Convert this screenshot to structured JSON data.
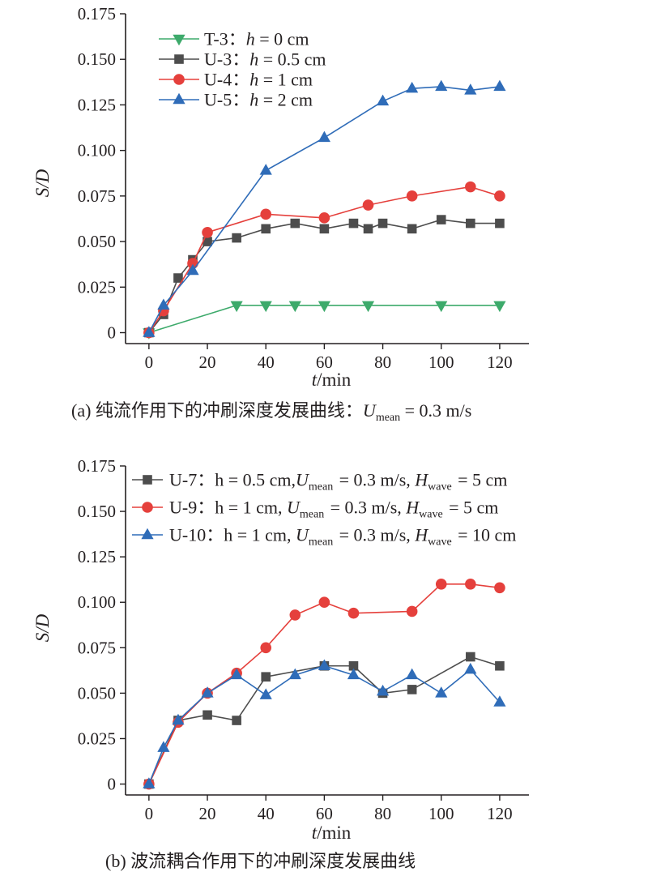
{
  "chart_data": [
    {
      "type": "line",
      "caption": {
        "prefix": "(a) 纯流作用下的冲刷深度发展曲线：",
        "var": "U",
        "sub": "mean",
        "suffix": " = 0.3 m/s"
      },
      "xlabel": {
        "var": "t",
        "unit": "/min"
      },
      "ylabel": "S/D",
      "xlim": [
        -8,
        130
      ],
      "ylim": [
        -0.006,
        0.175
      ],
      "xticks": [
        "0",
        "20",
        "40",
        "60",
        "80",
        "100",
        "120"
      ],
      "yticks": [
        "0",
        "0.025",
        "0.050",
        "0.075",
        "0.100",
        "0.125",
        "0.150",
        "0.175"
      ],
      "legend_position": "top-left",
      "grid": false,
      "series": [
        {
          "name": "T-3：",
          "param": "h = 0 cm",
          "marker": "triangle-down",
          "color": "#3daa6b",
          "x": [
            0,
            30,
            40,
            50,
            60,
            75,
            100,
            120
          ],
          "y": [
            0,
            0.015,
            0.015,
            0.015,
            0.015,
            0.015,
            0.015,
            0.015
          ]
        },
        {
          "name": "U-3：",
          "param": "h = 0.5 cm",
          "marker": "square",
          "color": "#4d4d4d",
          "x": [
            0,
            5,
            10,
            15,
            20,
            30,
            40,
            50,
            60,
            70,
            75,
            80,
            90,
            100,
            110,
            120
          ],
          "y": [
            0,
            0.01,
            0.03,
            0.04,
            0.05,
            0.052,
            0.057,
            0.06,
            0.057,
            0.06,
            0.057,
            0.06,
            0.057,
            0.062,
            0.06,
            0.06
          ]
        },
        {
          "name": "U-4：",
          "param": "h = 1 cm",
          "marker": "circle",
          "color": "#e5403c",
          "x": [
            0,
            5,
            15,
            20,
            40,
            60,
            75,
            90,
            110,
            120
          ],
          "y": [
            0,
            0.012,
            0.038,
            0.055,
            0.065,
            0.063,
            0.07,
            0.075,
            0.08,
            0.075
          ]
        },
        {
          "name": "U-5：",
          "param": "h = 2 cm",
          "marker": "triangle-up",
          "color": "#2f6cb8",
          "x": [
            0,
            5,
            15,
            40,
            60,
            80,
            90,
            100,
            110,
            120
          ],
          "y": [
            0,
            0.015,
            0.034,
            0.089,
            0.107,
            0.127,
            0.134,
            0.135,
            0.133,
            0.135
          ]
        }
      ]
    },
    {
      "type": "line",
      "caption": {
        "prefix": "(b) 波流耦合作用下的冲刷深度发展曲线",
        "var": "",
        "sub": "",
        "suffix": ""
      },
      "xlabel": {
        "var": "t",
        "unit": "/min"
      },
      "ylabel": "S/D",
      "xlim": [
        -8,
        130
      ],
      "ylim": [
        -0.006,
        0.175
      ],
      "xticks": [
        "0",
        "20",
        "40",
        "60",
        "80",
        "100",
        "120"
      ],
      "yticks": [
        "0",
        "0.025",
        "0.050",
        "0.075",
        "0.100",
        "0.125",
        "0.150",
        "0.175"
      ],
      "legend_position": "top-left",
      "grid": false,
      "series": [
        {
          "name": "U-7：",
          "param": "h = 0.5 cm,U_mean = 0.3 m/s, H_wave = 5 cm",
          "marker": "square",
          "color": "#4d4d4d",
          "x": [
            0,
            10,
            20,
            30,
            40,
            60,
            70,
            80,
            90,
            110,
            120
          ],
          "y": [
            0,
            0.035,
            0.038,
            0.035,
            0.059,
            0.065,
            0.065,
            0.05,
            0.052,
            0.07,
            0.065
          ]
        },
        {
          "name": "U-9：",
          "param": "h = 1 cm, U_mean = 0.3 m/s, H_wave = 5 cm",
          "marker": "circle",
          "color": "#e5403c",
          "x": [
            0,
            10,
            20,
            30,
            40,
            50,
            60,
            70,
            90,
            100,
            110,
            120
          ],
          "y": [
            0,
            0.034,
            0.05,
            0.061,
            0.075,
            0.093,
            0.1,
            0.094,
            0.095,
            0.11,
            0.11,
            0.108
          ]
        },
        {
          "name": "U-10：",
          "param": "h = 1 cm, U_mean = 0.3 m/s, H_wave = 10 cm",
          "marker": "triangle-up",
          "color": "#2f6cb8",
          "x": [
            0,
            5,
            10,
            20,
            30,
            40,
            50,
            60,
            70,
            80,
            90,
            100,
            110,
            120
          ],
          "y": [
            0,
            0.02,
            0.035,
            0.05,
            0.06,
            0.049,
            0.06,
            0.065,
            0.06,
            0.051,
            0.06,
            0.05,
            0.063,
            0.045
          ]
        }
      ]
    }
  ]
}
